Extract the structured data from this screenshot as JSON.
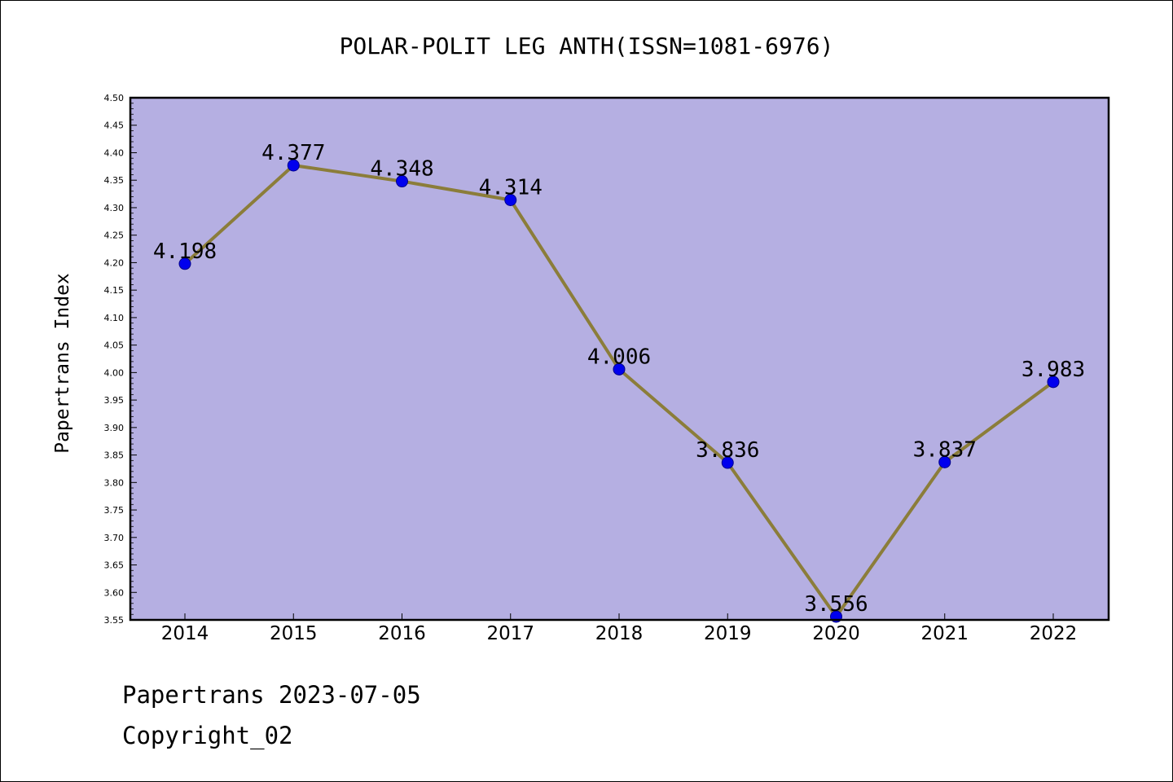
{
  "chart_data": {
    "type": "line",
    "title": "POLAR-POLIT LEG ANTH(ISSN=1081-6976)",
    "xlabel": "",
    "ylabel": "Papertrans Index",
    "categories": [
      "2014",
      "2015",
      "2016",
      "2017",
      "2018",
      "2019",
      "2020",
      "2021",
      "2022"
    ],
    "values": [
      4.198,
      4.377,
      4.348,
      4.314,
      4.006,
      3.836,
      3.556,
      3.837,
      3.983
    ],
    "value_labels": [
      "4.198",
      "4.377",
      "4.348",
      "4.314",
      "4.006",
      "3.836",
      "3.556",
      "3.837",
      "3.983"
    ],
    "ylim": [
      3.55,
      4.5
    ],
    "y_ticks": [
      "3.55",
      "3.60",
      "3.65",
      "3.70",
      "3.75",
      "3.80",
      "3.85",
      "3.90",
      "3.95",
      "4.00",
      "4.05",
      "4.10",
      "4.15",
      "4.20",
      "4.25",
      "4.30",
      "4.35",
      "4.40",
      "4.45",
      "4.50"
    ],
    "grid": false,
    "legend": "none",
    "colors": {
      "plot_background": "#b5afe2",
      "line": "#8b7d3a",
      "marker": "#0000ee",
      "marker_edge": "#00008b"
    }
  },
  "footer": {
    "line1": "Papertrans 2023-07-05",
    "line2": "Copyright_02"
  }
}
